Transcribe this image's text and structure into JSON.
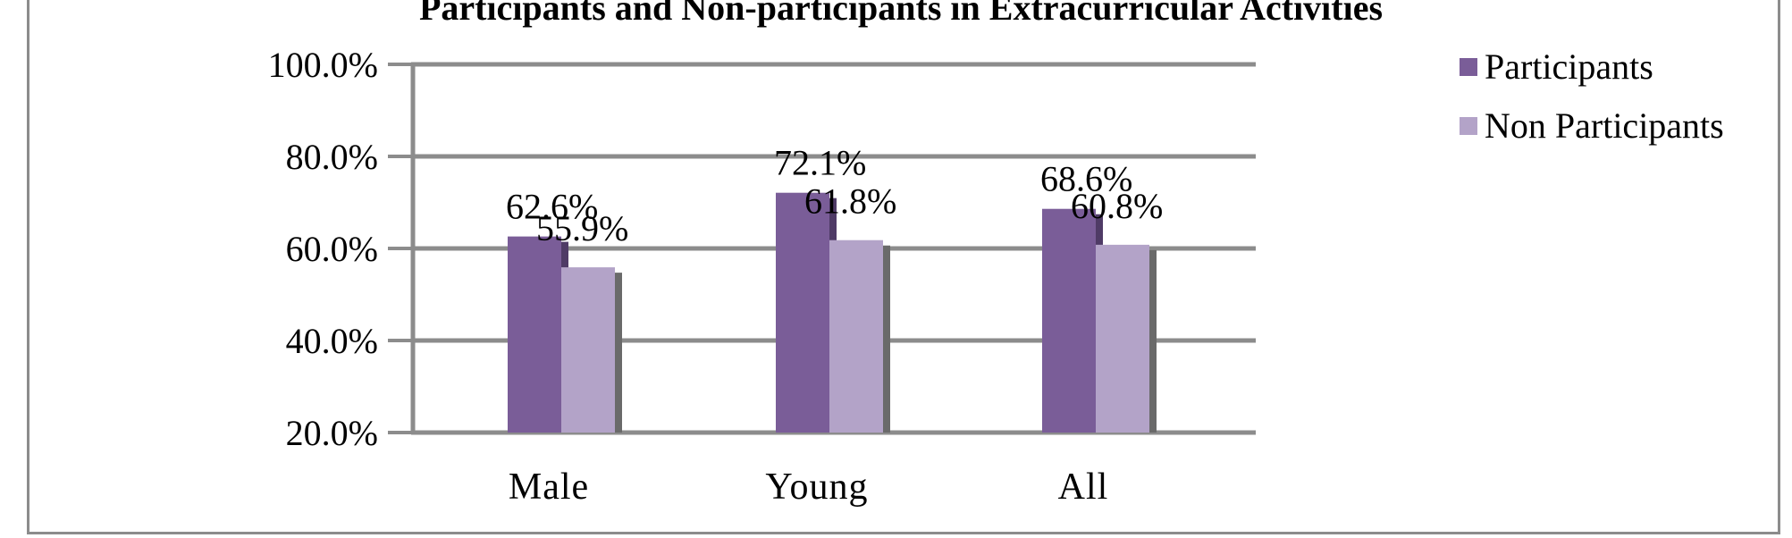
{
  "chart_data": {
    "type": "bar",
    "title": "Participants and Non-participants in Extracurricular Activities",
    "categories": [
      "Male",
      "Young",
      "All"
    ],
    "series": [
      {
        "name": "Participants",
        "values": [
          62.6,
          72.1,
          68.6
        ],
        "labels": [
          "62.6%",
          "72.1%",
          "68.6%"
        ]
      },
      {
        "name": "Non Participants",
        "values": [
          55.9,
          61.8,
          60.8
        ],
        "labels": [
          "55.9%",
          "61.8%",
          "60.8%"
        ]
      }
    ],
    "ylim": [
      20,
      100
    ],
    "yticks": [
      100,
      80,
      60,
      40,
      20
    ],
    "ytick_labels": [
      "100.0%",
      "80.0%",
      "60.0%",
      "40.0%",
      "20.0%"
    ],
    "grid": true,
    "legend": "top-right",
    "xlabel": "",
    "ylabel": "",
    "colors": {
      "Participants": "#7a5d98",
      "Non Participants": "#b3a3c8",
      "grid": "#8c8c8c",
      "border": "#8c8c8c"
    }
  }
}
